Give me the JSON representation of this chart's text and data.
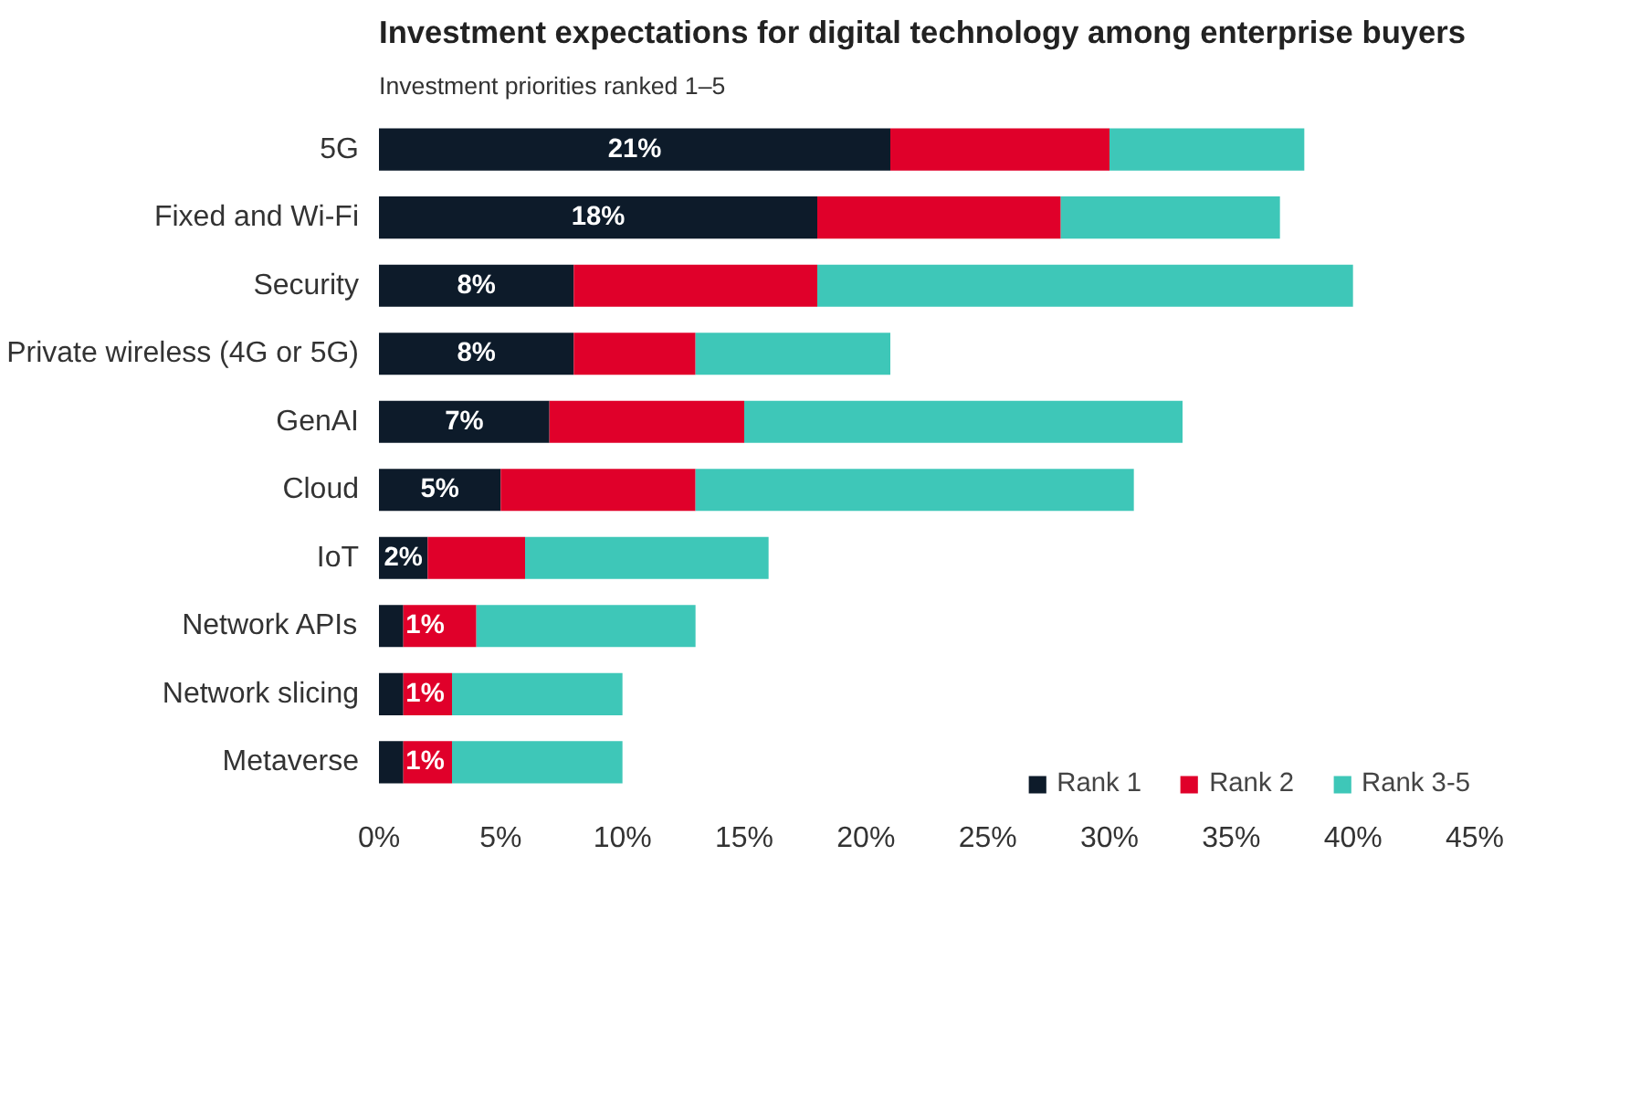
{
  "chart_data": {
    "type": "bar",
    "orientation": "horizontal",
    "stacked": true,
    "title": "Investment expectations for digital technology among enterprise buyers",
    "subtitle": "Investment priorities ranked 1–5",
    "categories": [
      "5G",
      "Fixed and Wi-Fi",
      "Security",
      "Private wireless (4G or 5G)",
      "GenAI",
      "Cloud",
      "IoT",
      "Network APIs",
      "Network slicing",
      "Metaverse"
    ],
    "series": [
      {
        "name": "Rank 1",
        "color": "#0d1b2a",
        "values": [
          21,
          18,
          8,
          8,
          7,
          5,
          2,
          1,
          1,
          1
        ],
        "value_labels": [
          "21%",
          "18%",
          "8%",
          "8%",
          "7%",
          "5%",
          "2%",
          "1%",
          "1%",
          "1%"
        ]
      },
      {
        "name": "Rank 2",
        "color": "#e0002a",
        "values": [
          9,
          10,
          10,
          5,
          8,
          8,
          4,
          3,
          2,
          2
        ]
      },
      {
        "name": "Rank 3-5",
        "color": "#3ec7b8",
        "values": [
          8,
          9,
          22,
          8,
          18,
          18,
          10,
          9,
          7,
          7
        ]
      }
    ],
    "xlim": [
      0,
      45
    ],
    "xticks": [
      {
        "value": 0,
        "label": "0%"
      },
      {
        "value": 5,
        "label": "5%"
      },
      {
        "value": 10,
        "label": "10%"
      },
      {
        "value": 15,
        "label": "15%"
      },
      {
        "value": 20,
        "label": "20%"
      },
      {
        "value": 25,
        "label": "25%"
      },
      {
        "value": 30,
        "label": "30%"
      },
      {
        "value": 35,
        "label": "35%"
      },
      {
        "value": 40,
        "label": "40%"
      },
      {
        "value": 45,
        "label": "45%"
      }
    ],
    "grid": false,
    "legend": "bottom right"
  }
}
